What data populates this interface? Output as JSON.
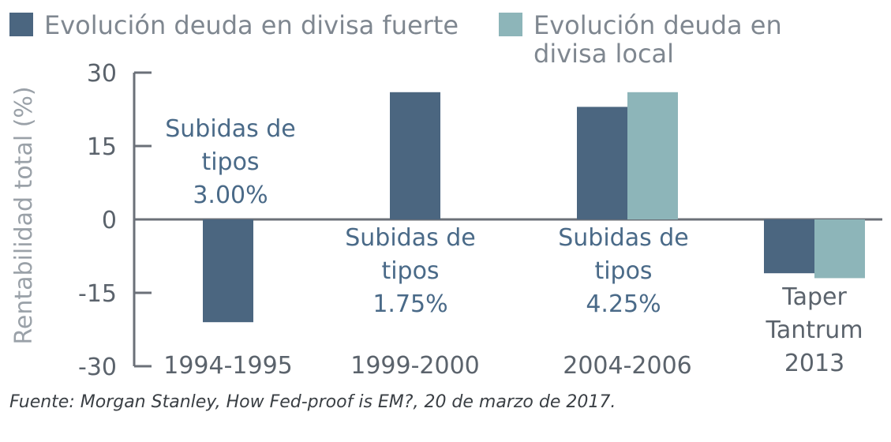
{
  "chart_data": {
    "type": "bar",
    "title": "",
    "ylabel": "Rentabilidad total (%)",
    "xlabel": "",
    "ylim": [
      -30,
      30
    ],
    "yticks": [
      "30",
      "15",
      "0",
      "-15",
      "-30"
    ],
    "categories": [
      "1994-1995",
      "1999-2000",
      "2004-2006",
      "Taper Tantrum 2013"
    ],
    "category_lines": [
      [
        "1994-1995"
      ],
      [
        "1999-2000"
      ],
      [
        "2004-2006"
      ],
      [
        "Taper",
        "Tantrum",
        "2013"
      ]
    ],
    "series": [
      {
        "name": "Evolución deuda en divisa fuerte",
        "legend_lines": [
          "Evolución deuda en divisa fuerte"
        ],
        "color": "#4b6680",
        "values": [
          -21,
          26,
          23,
          -11
        ]
      },
      {
        "name": "Evolución deuda en divisa local",
        "legend_lines": [
          "Evolución deuda en",
          "divisa local"
        ],
        "color": "#8db5b9",
        "values": [
          null,
          null,
          26,
          -12
        ]
      }
    ],
    "annotations": [
      [
        "Subidas de",
        "tipos",
        "3.00%"
      ],
      [
        "Subidas de",
        "tipos",
        "1.75%"
      ],
      [
        "Subidas de",
        "tipos",
        "4.25%"
      ]
    ]
  },
  "source": "Fuente: Morgan Stanley, How Fed-proof is EM?, 20 de marzo de 2017.",
  "colors": {
    "axis": "#6b7078",
    "tick_text": "#5b636c",
    "ylabel": "#9aa1a8",
    "annotation": "#4a6a88",
    "legend_text": "#7f8790"
  }
}
